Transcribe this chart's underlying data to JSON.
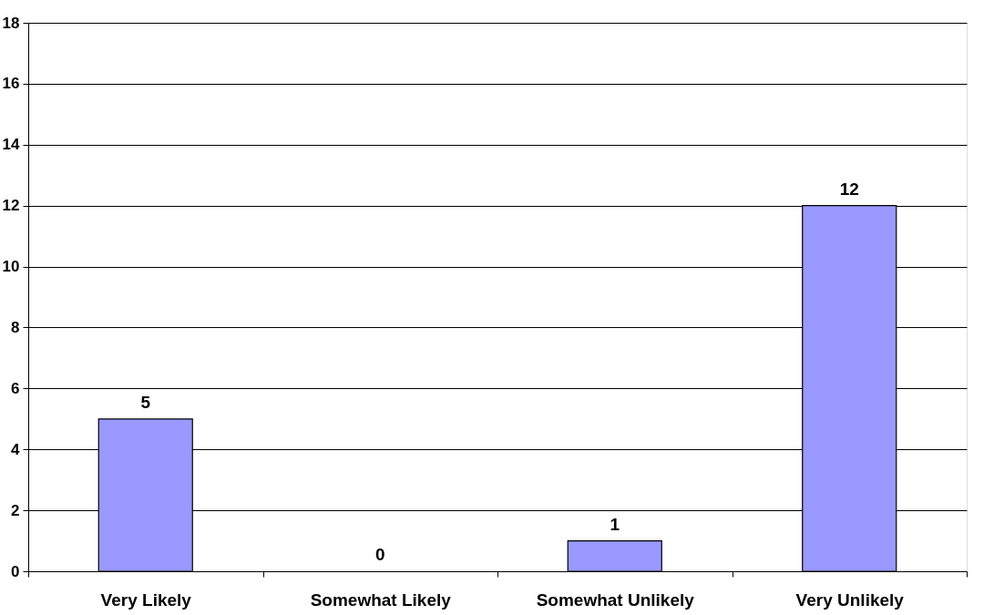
{
  "chart_data": {
    "type": "bar",
    "categories": [
      "Very Likely",
      "Somewhat Likely",
      "Somewhat Unlikely",
      "Very Unlikely"
    ],
    "values": [
      5,
      0,
      1,
      12
    ],
    "color": "#9999ff",
    "ylim": [
      0,
      18
    ],
    "yticks": [
      0,
      2,
      4,
      6,
      8,
      10,
      12,
      14,
      16,
      18
    ],
    "grid": "y",
    "data_labels": true
  }
}
